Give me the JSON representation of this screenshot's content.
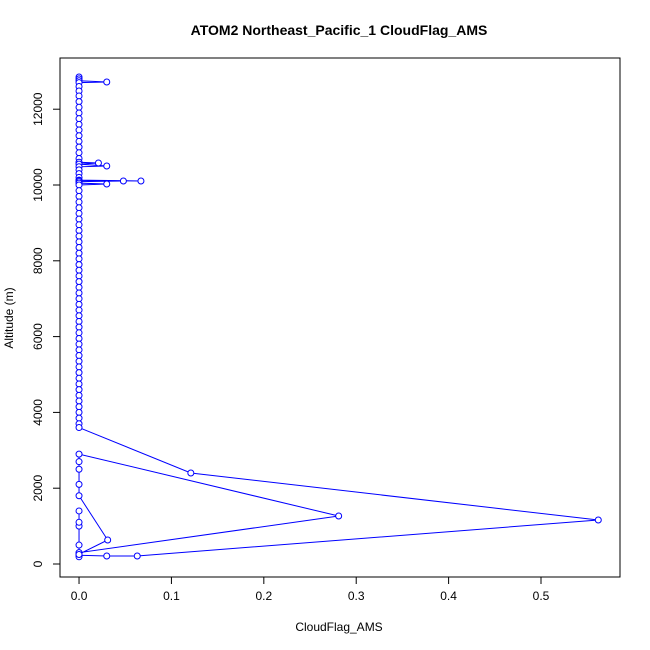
{
  "chart_data": {
    "type": "line",
    "title": "ATOM2 Northeast_Pacific_1 CloudFlag_AMS",
    "x_label": "CloudFlag_AMS",
    "y_label": "Altitude (m)",
    "color": "#0000ff",
    "markers": true,
    "x": [
      0,
      0,
      0,
      0.03,
      0,
      0,
      0,
      0,
      0,
      0,
      0,
      0,
      0,
      0,
      0,
      0,
      0,
      0,
      0,
      0,
      0.021,
      0,
      0.03,
      0,
      0,
      0,
      0,
      0,
      0.067,
      0,
      0.048,
      0,
      0,
      0.03,
      0,
      0,
      0,
      0,
      0,
      0,
      0,
      0,
      0,
      0,
      0,
      0,
      0,
      0,
      0,
      0,
      0,
      0,
      0,
      0,
      0,
      0,
      0,
      0,
      0,
      0,
      0,
      0,
      0,
      0,
      0,
      0,
      0,
      0,
      0,
      0,
      0,
      0,
      0,
      0,
      0,
      0,
      0,
      0,
      0.121,
      0.562,
      0.063,
      0.03,
      0,
      0,
      0,
      0.031,
      0,
      0,
      0,
      0,
      0,
      0.281,
      0,
      0,
      0,
      0,
      0,
      0
    ],
    "y": [
      12850,
      12800,
      12750,
      12718,
      12700,
      12600,
      12480,
      12350,
      12200,
      12050,
      11900,
      11750,
      11600,
      11450,
      11300,
      11150,
      11000,
      10850,
      10700,
      10600,
      10580,
      10550,
      10501,
      10480,
      10400,
      10300,
      10200,
      10130,
      10106,
      10120,
      10106,
      10090,
      10050,
      10026,
      10000,
      9850,
      9700,
      9550,
      9400,
      9250,
      9100,
      8950,
      8800,
      8650,
      8500,
      8350,
      8200,
      8050,
      7900,
      7750,
      7600,
      7450,
      7300,
      7150,
      7000,
      6850,
      6700,
      6550,
      6400,
      6250,
      6100,
      5950,
      5800,
      5650,
      5500,
      5350,
      5200,
      5050,
      4900,
      4750,
      4600,
      4450,
      4300,
      4150,
      4000,
      3850,
      3700,
      3600,
      2401,
      1161,
      211,
      211,
      230,
      190,
      260,
      633,
      1800,
      2100,
      2500,
      2700,
      2900,
      1266,
      300,
      250,
      500,
      1000,
      1100,
      1400
    ],
    "xlim": [
      -0.0206,
      0.5855
    ],
    "ylim": [
      -343,
      13351
    ],
    "xticks": [
      {
        "value": 0,
        "label": "0.0"
      },
      0.1,
      0.2,
      0.3,
      0.4,
      0.5
    ],
    "yticks": [
      0,
      2000,
      4000,
      6000,
      8000,
      10000,
      12000
    ]
  }
}
